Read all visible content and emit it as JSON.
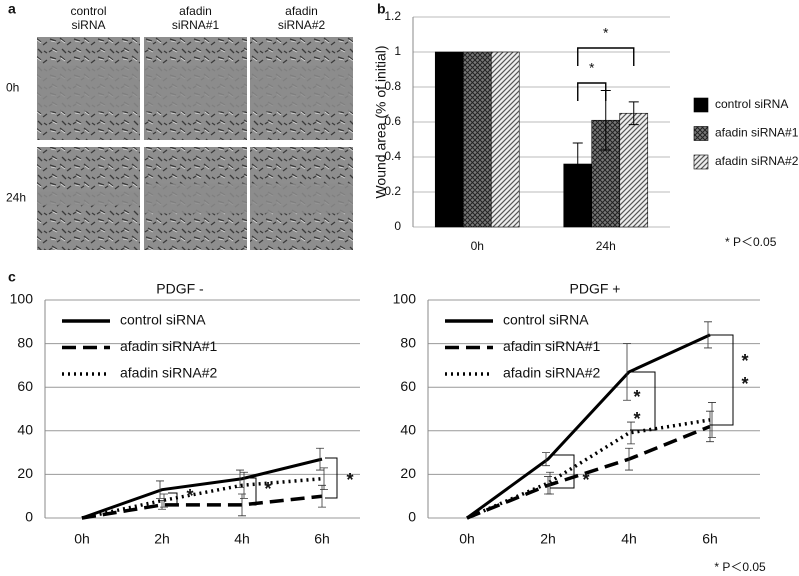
{
  "panel_labels": [
    "a",
    "b",
    "c"
  ],
  "panel_a": {
    "columns": [
      [
        "control",
        "siRNA"
      ],
      [
        "afadin",
        "siRNA#1"
      ],
      [
        "afadin",
        "siRNA#2"
      ]
    ],
    "rows": [
      "0h",
      "24h"
    ]
  },
  "chart_data": [
    {
      "type": "bar",
      "ylabel": "Wound area (% of initial)",
      "categories": [
        "0h",
        "24h"
      ],
      "series": [
        {
          "name": "control siRNA",
          "color": "#000000",
          "pattern": "solid",
          "values": [
            1,
            0.36
          ],
          "errors": [
            null,
            0.12
          ]
        },
        {
          "name": "afadin siRNA#1",
          "color": "#555555",
          "pattern": "crosshatch",
          "values": [
            1,
            0.61
          ],
          "errors": [
            null,
            0.17
          ]
        },
        {
          "name": "afadin siRNA#2",
          "color": "#999999",
          "pattern": "diagonal",
          "values": [
            1,
            0.65
          ],
          "errors": [
            null,
            0.065
          ]
        }
      ],
      "ylim": [
        0,
        1.2
      ],
      "yticks": [
        0,
        0.2,
        0.4,
        0.6,
        0.8,
        1,
        1.2
      ],
      "grid": true,
      "legend": "right",
      "annotations": [
        "*",
        "*"
      ],
      "note": "* P＜0.05"
    },
    {
      "type": "line",
      "title": "PDGF -",
      "categories": [
        "0h",
        "2h",
        "4h",
        "6h"
      ],
      "series": [
        {
          "name": "control siRNA",
          "color": "#000000",
          "dash": "solid",
          "values": [
            0,
            13,
            18,
            27
          ],
          "errors": [
            null,
            4,
            4,
            5
          ]
        },
        {
          "name": "afadin siRNA#1",
          "color": "#000000",
          "dash": "dashed",
          "values": [
            0,
            6,
            6,
            10
          ],
          "errors": [
            null,
            2,
            5,
            5
          ]
        },
        {
          "name": "afadin siRNA#2",
          "color": "#000000",
          "dash": "dotted",
          "values": [
            0,
            8,
            15,
            18
          ],
          "errors": [
            null,
            3,
            6,
            5
          ]
        }
      ],
      "ylim": [
        0,
        100
      ],
      "yticks": [
        0,
        20,
        40,
        60,
        80,
        100
      ],
      "grid": true,
      "legend": "upper left",
      "annotations": [
        "*",
        "*",
        "*"
      ]
    },
    {
      "type": "line",
      "title": "PDGF +",
      "categories": [
        "0h",
        "2h",
        "4h",
        "6h"
      ],
      "series": [
        {
          "name": "control siRNA",
          "color": "#000000",
          "dash": "solid",
          "values": [
            0,
            27,
            67,
            84
          ],
          "errors": [
            null,
            3,
            13,
            6
          ]
        },
        {
          "name": "afadin siRNA#1",
          "color": "#000000",
          "dash": "dashed",
          "values": [
            0,
            15,
            27,
            42
          ],
          "errors": [
            null,
            4,
            5,
            7
          ]
        },
        {
          "name": "afadin siRNA#2",
          "color": "#000000",
          "dash": "dotted",
          "values": [
            0,
            16,
            39,
            45
          ],
          "errors": [
            null,
            5,
            5,
            8
          ]
        }
      ],
      "ylim": [
        0,
        100
      ],
      "yticks": [
        0,
        20,
        40,
        60,
        80,
        100
      ],
      "grid": true,
      "legend": "upper left",
      "annotations": [
        "*",
        "*",
        "*",
        "*",
        "*"
      ],
      "note": "* P＜0.05"
    }
  ]
}
